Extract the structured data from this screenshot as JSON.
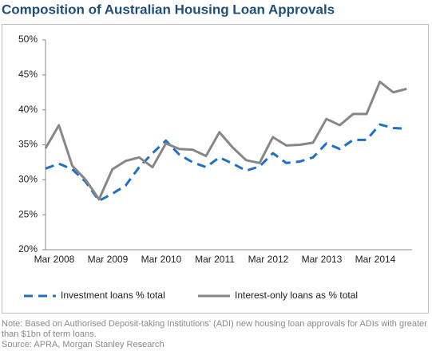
{
  "chart_data": {
    "type": "line",
    "title": "Composition of Australian Housing Loan Approvals",
    "categories": [
      "Mar 2008",
      null,
      null,
      null,
      "Mar 2009",
      null,
      null,
      null,
      "Mar 2010",
      null,
      null,
      null,
      "Mar 2011",
      null,
      null,
      null,
      "Mar 2012",
      null,
      null,
      null,
      "Mar 2013",
      null,
      null,
      null,
      "Mar 2014",
      null,
      null,
      null
    ],
    "series": [
      {
        "name": "Investment loans % total",
        "color": "#1f6fc5",
        "dashed": true,
        "values": [
          31.6,
          32.3,
          31.5,
          29.7,
          27.0,
          28.0,
          29.2,
          31.8,
          33.8,
          35.6,
          33.6,
          32.5,
          31.8,
          33.2,
          32.3,
          31.3,
          31.9,
          33.8,
          32.4,
          32.6,
          33.2,
          35.2,
          34.4,
          35.7,
          35.7,
          37.9,
          37.4,
          37.3
        ]
      },
      {
        "name": "Interest-only loans as % total",
        "color": "#878787",
        "dashed": false,
        "values": [
          34.5,
          37.8,
          32.0,
          30.0,
          27.2,
          31.5,
          32.7,
          33.2,
          31.8,
          35.2,
          34.4,
          34.3,
          33.4,
          36.8,
          34.6,
          32.8,
          32.4,
          36.1,
          34.9,
          35.0,
          35.3,
          38.7,
          37.8,
          39.4,
          39.4,
          44.0,
          42.5,
          43.0
        ]
      }
    ],
    "ylim": [
      20,
      50
    ],
    "yticks": [
      {
        "value": 20,
        "label": "20%"
      },
      {
        "value": 25,
        "label": "25%"
      },
      {
        "value": 30,
        "label": "30%"
      },
      {
        "value": 35,
        "label": "35%"
      },
      {
        "value": 40,
        "label": "40%"
      },
      {
        "value": 45,
        "label": "45%"
      },
      {
        "value": 50,
        "label": "50%"
      }
    ],
    "grid": false,
    "legend": "bottom",
    "note": "Note: Based on Authorised Deposit-taking Institutions' (ADI) new housing loan approvals for ADIs with greater than $1bn of term loans.",
    "source": "Source: APRA, Morgan Stanley Research"
  }
}
